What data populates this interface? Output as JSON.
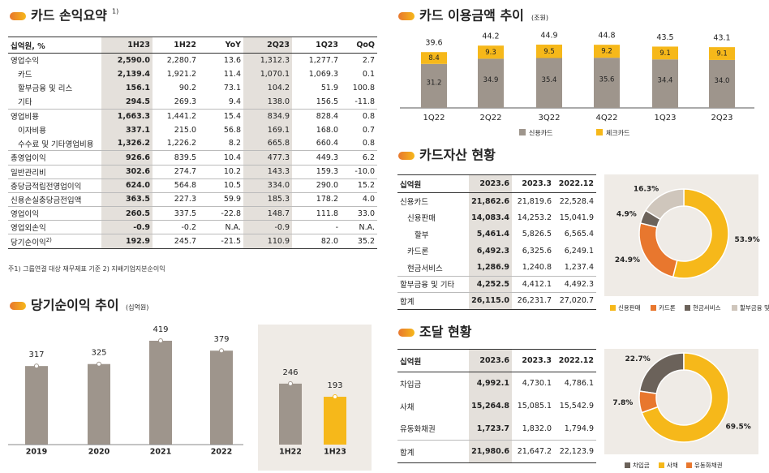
{
  "income_summary": {
    "title": "카드 손익요약",
    "title_note": "1)",
    "header": [
      "십억원, %",
      "1H23",
      "1H22",
      "YoY",
      "2Q23",
      "1Q23",
      "QoQ"
    ],
    "rows": [
      [
        "영업수익",
        "2,590.0",
        "2,280.7",
        "13.6",
        "1,312.3",
        "1,277.7",
        "2.7"
      ],
      [
        "카드",
        "2,139.4",
        "1,921.2",
        "11.4",
        "1,070.1",
        "1,069.3",
        "0.1"
      ],
      [
        "할부금융 및 리스",
        "156.1",
        "90.2",
        "73.1",
        "104.2",
        "51.9",
        "100.8"
      ],
      [
        "기타",
        "294.5",
        "269.3",
        "9.4",
        "138.0",
        "156.5",
        "-11.8"
      ],
      [
        "영업비용",
        "1,663.3",
        "1,441.2",
        "15.4",
        "834.9",
        "828.4",
        "0.8"
      ],
      [
        "이자비용",
        "337.1",
        "215.0",
        "56.8",
        "169.1",
        "168.0",
        "0.7"
      ],
      [
        "수수료 및 기타영업비용",
        "1,326.2",
        "1,226.2",
        "8.2",
        "665.8",
        "660.4",
        "0.8"
      ],
      [
        "총영업이익",
        "926.6",
        "839.5",
        "10.4",
        "477.3",
        "449.3",
        "6.2"
      ],
      [
        "일반관리비",
        "302.6",
        "274.7",
        "10.2",
        "143.3",
        "159.3",
        "-10.0"
      ],
      [
        "충당금적립전영업이익",
        "624.0",
        "564.8",
        "10.5",
        "334.0",
        "290.0",
        "15.2"
      ],
      [
        "신용손실충당금전입액",
        "363.5",
        "227.3",
        "59.9",
        "185.3",
        "178.2",
        "4.0"
      ],
      [
        "영업이익",
        "260.5",
        "337.5",
        "-22.8",
        "148.7",
        "111.8",
        "33.0"
      ],
      [
        "영업외손익",
        "-0.9",
        "-0.2",
        "N.A.",
        "-0.9",
        "-",
        "N.A."
      ],
      [
        "당기순이익",
        "192.9",
        "245.7",
        "-21.5",
        "110.9",
        "82.0",
        "35.2"
      ]
    ],
    "last_row_note": "2)",
    "footnote": "주1) 그룹연결 대상 재무제표 기준    2) 지배기업지분순이익"
  },
  "card_assets": {
    "title": "카드자산 현황",
    "header": [
      "십억원",
      "2023.6",
      "2023.3",
      "2022.12"
    ],
    "rows": [
      [
        "신용카드",
        "21,862.6",
        "21,819.6",
        "22,528.4"
      ],
      [
        "신용판매",
        "14,083.4",
        "14,253.2",
        "15,041.9"
      ],
      [
        "할부",
        "5,461.4",
        "5,826.5",
        "6,565.4"
      ],
      [
        "카드론",
        "6,492.3",
        "6,325.6",
        "6,249.1"
      ],
      [
        "현금서비스",
        "1,286.9",
        "1,240.8",
        "1,237.4"
      ],
      [
        "할부금융 및 기타",
        "4,252.5",
        "4,412.1",
        "4,492.3"
      ],
      [
        "합계",
        "26,115.0",
        "26,231.7",
        "27,020.7"
      ]
    ]
  },
  "funding": {
    "title": "조달 현황",
    "header": [
      "십억원",
      "2023.6",
      "2023.3",
      "2022.12"
    ],
    "rows": [
      [
        "차입금",
        "4,992.1",
        "4,730.1",
        "4,786.1"
      ],
      [
        "사채",
        "15,264.8",
        "15,085.1",
        "15,542.9"
      ],
      [
        "유동화채권",
        "1,723.7",
        "1,832.0",
        "1,794.9"
      ],
      [
        "합계",
        "21,980.6",
        "21,647.2",
        "22,123.9"
      ]
    ]
  },
  "chart_data": [
    {
      "type": "stacked_bar",
      "title": "카드 이용금액 추이",
      "unit": "(조원)",
      "categories": [
        "1Q22",
        "2Q22",
        "3Q22",
        "4Q22",
        "1Q23",
        "2Q23"
      ],
      "series": [
        {
          "name": "신용카드",
          "color": "#9e958c",
          "values": [
            31.2,
            34.9,
            35.4,
            35.6,
            34.4,
            34.0
          ],
          "value_labels": [
            "31.2",
            "34.9",
            "35.4",
            "35.6",
            "34.4",
            "34.0"
          ]
        },
        {
          "name": "체크카드",
          "color": "#f6b81a",
          "values": [
            8.4,
            9.3,
            9.5,
            9.2,
            9.1,
            9.1
          ]
        }
      ],
      "totals": [
        39.6,
        44.2,
        44.9,
        44.8,
        43.5,
        43.1
      ]
    },
    {
      "type": "bar",
      "title": "당기순이익 추이",
      "unit": "(십억원)",
      "categories": [
        "2019",
        "2020",
        "2021",
        "2022",
        "1H22",
        "1H23"
      ],
      "values": [
        317,
        325,
        419,
        379,
        246,
        193
      ],
      "colors": [
        "#9e958c",
        "#9e958c",
        "#9e958c",
        "#9e958c",
        "#9e958c",
        "#f6b81a"
      ]
    },
    {
      "type": "donut",
      "categories": [
        "신용판매",
        "카드론",
        "현금서비스",
        "할부금융 및 기타"
      ],
      "values": [
        53.9,
        24.9,
        4.9,
        16.3
      ],
      "value_labels": [
        "53.9%",
        "24.9%",
        "4.9%",
        "16.3%"
      ],
      "colors": [
        "#f6b81a",
        "#e8772e",
        "#6b625a",
        "#cfc6bc"
      ]
    },
    {
      "type": "donut",
      "categories": [
        "차입금",
        "사채",
        "유동화채권"
      ],
      "values": [
        22.7,
        69.5,
        7.8
      ],
      "value_labels": [
        "22.7%",
        "69.5%",
        "7.8%"
      ],
      "colors": [
        "#6b625a",
        "#f6b81a",
        "#e8772e"
      ]
    }
  ]
}
